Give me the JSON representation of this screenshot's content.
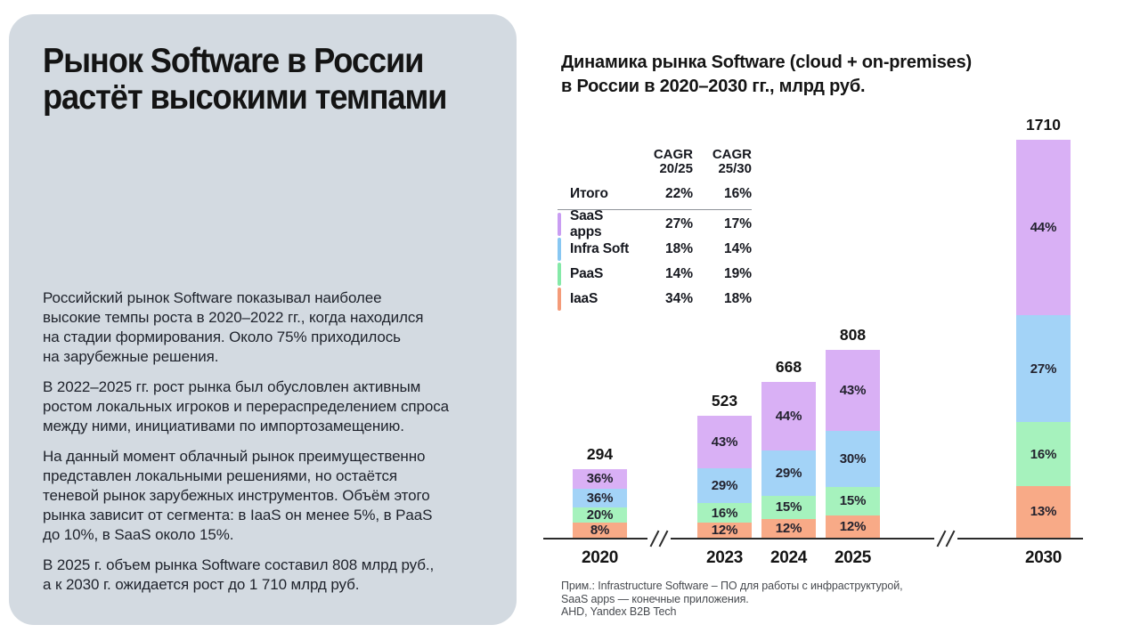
{
  "left_panel": {
    "title": "Рынок Software в России\nрастёт высокими темпами",
    "paragraphs": [
      "Российский рынок Software показывал наиболее\nвысокие темпы роста в 2020–2022 гг., когда находился\nна стадии формирования. Около 75% приходилось\nна зарубежные решения.",
      "В 2022–2025 гг. рост рынка был обусловлен активным\nростом локальных игроков и перераспределением спроса\nмежду ними, инициативами по импортозамещению.",
      "На данный момент облачный рынок преимущественно\nпредставлен локальными решениями, но остаётся\nтеневой рынок зарубежных инструментов. Объём этого\nрынка зависит от сегмента: в IaaS он менее 5%, в PaaS\nдо 10%, в SaaS около 15%.",
      "В 2025 г. объем рынка Software составил 808 млрд руб.,\nа к 2030 г. ожидается рост до 1 710 млрд руб."
    ],
    "panel_color": "#d3dae1"
  },
  "chart": {
    "title": "Динамика рынка Software (cloud + on-premises)\nв России в 2020–2030 гг., млрд руб."
  },
  "chart_data": {
    "type": "bar",
    "stacked": true,
    "title": "Динамика рынка Software (cloud + on-premises) в России в 2020–2030 гг., млрд руб.",
    "unit": "млрд руб.",
    "categories": [
      "2020",
      "2023",
      "2024",
      "2025",
      "2030"
    ],
    "totals": [
      294,
      523,
      668,
      808,
      1710
    ],
    "series": [
      {
        "name": "SaaS apps",
        "color": "#d9b0f5",
        "tick_color": "#c99df2",
        "pct": [
          36,
          43,
          44,
          43,
          44
        ]
      },
      {
        "name": "Infra Soft",
        "color": "#a3d3f7",
        "tick_color": "#88c7f2",
        "pct": [
          36,
          29,
          29,
          30,
          27
        ]
      },
      {
        "name": "PaaS",
        "color": "#a6f2bd",
        "tick_color": "#85e9a8",
        "pct": [
          20,
          16,
          15,
          15,
          16
        ]
      },
      {
        "name": "IaaS",
        "color": "#f8aa87",
        "tick_color": "#f49b79",
        "pct": [
          8,
          12,
          12,
          12,
          13
        ]
      }
    ],
    "axis_breaks_between": [
      [
        "2020",
        "2023"
      ],
      [
        "2025",
        "2030"
      ]
    ],
    "legend_position": "table-left",
    "grid": false,
    "cagr_table": {
      "col_headers": [
        "CAGR\n20/25",
        "CAGR\n25/30"
      ],
      "rows": [
        {
          "label": "Итого",
          "values": [
            "22%",
            "16%"
          ],
          "tick_color": null,
          "separator_after": true
        },
        {
          "label": "SaaS apps",
          "values": [
            "27%",
            "17%"
          ],
          "tick_color": "#c99df2",
          "separator_after": false
        },
        {
          "label": "Infra Soft",
          "values": [
            "18%",
            "14%"
          ],
          "tick_color": "#88c7f2",
          "separator_after": false
        },
        {
          "label": "PaaS",
          "values": [
            "14%",
            "19%"
          ],
          "tick_color": "#85e9a8",
          "separator_after": false
        },
        {
          "label": "IaaS",
          "values": [
            "34%",
            "18%"
          ],
          "tick_color": "#f49b79",
          "separator_after": false
        }
      ]
    }
  },
  "footnote": {
    "text": "Прим.: Infrastructure Software – ПО для работы с инфраструктурой,\nSaaS apps — конечные приложения.\nАHD, Yandex B2B Tech"
  }
}
